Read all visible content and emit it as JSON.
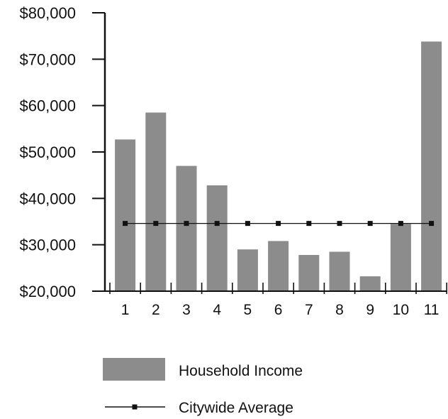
{
  "chart_data": {
    "type": "bar",
    "title": "",
    "xlabel": "",
    "ylabel": "",
    "categories": [
      "1",
      "2",
      "3",
      "4",
      "5",
      "6",
      "7",
      "8",
      "9",
      "10",
      "11"
    ],
    "ylim": [
      20000,
      80000
    ],
    "yticks": [
      20000,
      30000,
      40000,
      50000,
      60000,
      70000,
      80000
    ],
    "ytick_labels": [
      "$20,000",
      "$30,000",
      "$40,000",
      "$50,000",
      "$60,000",
      "$70,000",
      "$80,000"
    ],
    "grid": false,
    "legend_position": "bottom",
    "series": [
      {
        "name": "Household Income",
        "type": "bar",
        "color": "#8c8c8c",
        "values": [
          52700,
          58500,
          47000,
          42800,
          29000,
          30800,
          27800,
          28500,
          23200,
          34500,
          73800
        ]
      },
      {
        "name": "Citywide Average",
        "type": "line",
        "color": "#111111",
        "values": [
          34600,
          34600,
          34600,
          34600,
          34600,
          34600,
          34600,
          34600,
          34600,
          34600,
          34600
        ]
      }
    ]
  }
}
